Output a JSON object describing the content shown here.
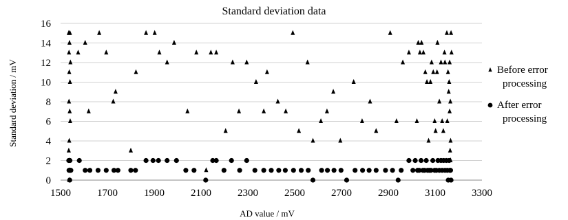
{
  "chart_data": {
    "type": "scatter",
    "title": "Standard deviation data",
    "xlabel": "AD value / mV",
    "ylabel": "Standard deviation / mV",
    "xlim": [
      1500,
      3300
    ],
    "ylim": [
      0,
      16
    ],
    "xticks": [
      1500,
      1700,
      1900,
      2100,
      2300,
      2500,
      2700,
      2900,
      3100,
      3300
    ],
    "yticks": [
      0,
      2,
      4,
      6,
      8,
      10,
      12,
      14,
      16
    ],
    "grid": "horizontal",
    "legend_position": "right",
    "colors": {
      "marker": "#000000",
      "grid": "#d0d0d0"
    },
    "series": [
      {
        "name": "Before error processing",
        "marker": "triangle",
        "points": [
          [
            1535,
            15
          ],
          [
            1540,
            15
          ],
          [
            1538,
            14
          ],
          [
            1536,
            13
          ],
          [
            1542,
            12
          ],
          [
            1537,
            11
          ],
          [
            1540,
            10
          ],
          [
            1536,
            8
          ],
          [
            1539,
            7
          ],
          [
            1541,
            6
          ],
          [
            1537,
            4
          ],
          [
            1535,
            3
          ],
          [
            1538,
            2
          ],
          [
            1540,
            1
          ],
          [
            1536,
            0
          ],
          [
            1575,
            13
          ],
          [
            1605,
            14
          ],
          [
            1620,
            7
          ],
          [
            1665,
            15
          ],
          [
            1695,
            13
          ],
          [
            1725,
            8
          ],
          [
            1735,
            9
          ],
          [
            1800,
            3
          ],
          [
            1822,
            11
          ],
          [
            1865,
            15
          ],
          [
            1902,
            15
          ],
          [
            1922,
            13
          ],
          [
            1955,
            12
          ],
          [
            1985,
            14
          ],
          [
            2042,
            7
          ],
          [
            2080,
            13
          ],
          [
            2122,
            1
          ],
          [
            2142,
            13
          ],
          [
            2165,
            13
          ],
          [
            2205,
            5
          ],
          [
            2235,
            12
          ],
          [
            2262,
            7
          ],
          [
            2295,
            12
          ],
          [
            2335,
            10
          ],
          [
            2368,
            7
          ],
          [
            2382,
            11
          ],
          [
            2428,
            8
          ],
          [
            2462,
            7
          ],
          [
            2492,
            15
          ],
          [
            2518,
            5
          ],
          [
            2555,
            12
          ],
          [
            2578,
            4
          ],
          [
            2612,
            6
          ],
          [
            2638,
            7
          ],
          [
            2665,
            9
          ],
          [
            2695,
            4
          ],
          [
            2752,
            10
          ],
          [
            2788,
            6
          ],
          [
            2822,
            8
          ],
          [
            2848,
            5
          ],
          [
            2908,
            15
          ],
          [
            2935,
            6
          ],
          [
            2962,
            12
          ],
          [
            2988,
            13
          ],
          [
            3022,
            6
          ],
          [
            3028,
            14
          ],
          [
            3035,
            13
          ],
          [
            3042,
            14
          ],
          [
            3050,
            13
          ],
          [
            3058,
            11
          ],
          [
            3065,
            10
          ],
          [
            3072,
            4
          ],
          [
            3080,
            10
          ],
          [
            3085,
            12
          ],
          [
            3092,
            11
          ],
          [
            3098,
            6
          ],
          [
            3102,
            5
          ],
          [
            3108,
            11
          ],
          [
            3110,
            14
          ],
          [
            3118,
            8
          ],
          [
            3125,
            12
          ],
          [
            3130,
            6
          ],
          [
            3135,
            5
          ],
          [
            3140,
            13
          ],
          [
            3142,
            12
          ],
          [
            3150,
            15
          ],
          [
            3152,
            6
          ],
          [
            3155,
            11
          ],
          [
            3158,
            9
          ],
          [
            3160,
            10
          ],
          [
            3162,
            7
          ],
          [
            3165,
            8
          ],
          [
            3166,
            4
          ],
          [
            3168,
            15
          ],
          [
            3170,
            13
          ],
          [
            3162,
            12
          ],
          [
            3164,
            3
          ],
          [
            3166,
            2
          ]
        ]
      },
      {
        "name": "After error processing",
        "marker": "circle",
        "points": [
          [
            1535,
            2
          ],
          [
            1540,
            2
          ],
          [
            1538,
            1
          ],
          [
            1536,
            1
          ],
          [
            1542,
            1
          ],
          [
            1544,
            1
          ],
          [
            1539,
            0
          ],
          [
            1580,
            2
          ],
          [
            1605,
            1
          ],
          [
            1625,
            1
          ],
          [
            1660,
            1
          ],
          [
            1695,
            1
          ],
          [
            1728,
            1
          ],
          [
            1745,
            1
          ],
          [
            1800,
            1
          ],
          [
            1820,
            1
          ],
          [
            1865,
            2
          ],
          [
            1895,
            2
          ],
          [
            1918,
            2
          ],
          [
            1955,
            2
          ],
          [
            1995,
            2
          ],
          [
            2035,
            1
          ],
          [
            2070,
            1
          ],
          [
            2120,
            0
          ],
          [
            2150,
            2
          ],
          [
            2165,
            2
          ],
          [
            2198,
            1
          ],
          [
            2230,
            2
          ],
          [
            2265,
            1
          ],
          [
            2295,
            2
          ],
          [
            2330,
            1
          ],
          [
            2368,
            1
          ],
          [
            2400,
            1
          ],
          [
            2432,
            1
          ],
          [
            2460,
            1
          ],
          [
            2495,
            1
          ],
          [
            2528,
            1
          ],
          [
            2558,
            1
          ],
          [
            2578,
            0
          ],
          [
            2615,
            1
          ],
          [
            2640,
            1
          ],
          [
            2668,
            1
          ],
          [
            2698,
            1
          ],
          [
            2722,
            0
          ],
          [
            2758,
            1
          ],
          [
            2790,
            1
          ],
          [
            2818,
            1
          ],
          [
            2848,
            1
          ],
          [
            2888,
            1
          ],
          [
            2918,
            1
          ],
          [
            2942,
            0
          ],
          [
            2955,
            1
          ],
          [
            2988,
            2
          ],
          [
            3005,
            1
          ],
          [
            3015,
            2
          ],
          [
            3025,
            1
          ],
          [
            3032,
            1
          ],
          [
            3040,
            2
          ],
          [
            3048,
            1
          ],
          [
            3055,
            1
          ],
          [
            3062,
            2
          ],
          [
            3068,
            1
          ],
          [
            3075,
            1
          ],
          [
            3082,
            1
          ],
          [
            3090,
            2
          ],
          [
            3098,
            1
          ],
          [
            3105,
            1
          ],
          [
            3112,
            2
          ],
          [
            3118,
            1
          ],
          [
            3125,
            2
          ],
          [
            3130,
            1
          ],
          [
            3136,
            2
          ],
          [
            3142,
            1
          ],
          [
            3148,
            2
          ],
          [
            3152,
            1
          ],
          [
            3156,
            0
          ],
          [
            3160,
            2
          ],
          [
            3163,
            1
          ],
          [
            3166,
            1
          ],
          [
            3168,
            0
          ]
        ]
      }
    ]
  }
}
